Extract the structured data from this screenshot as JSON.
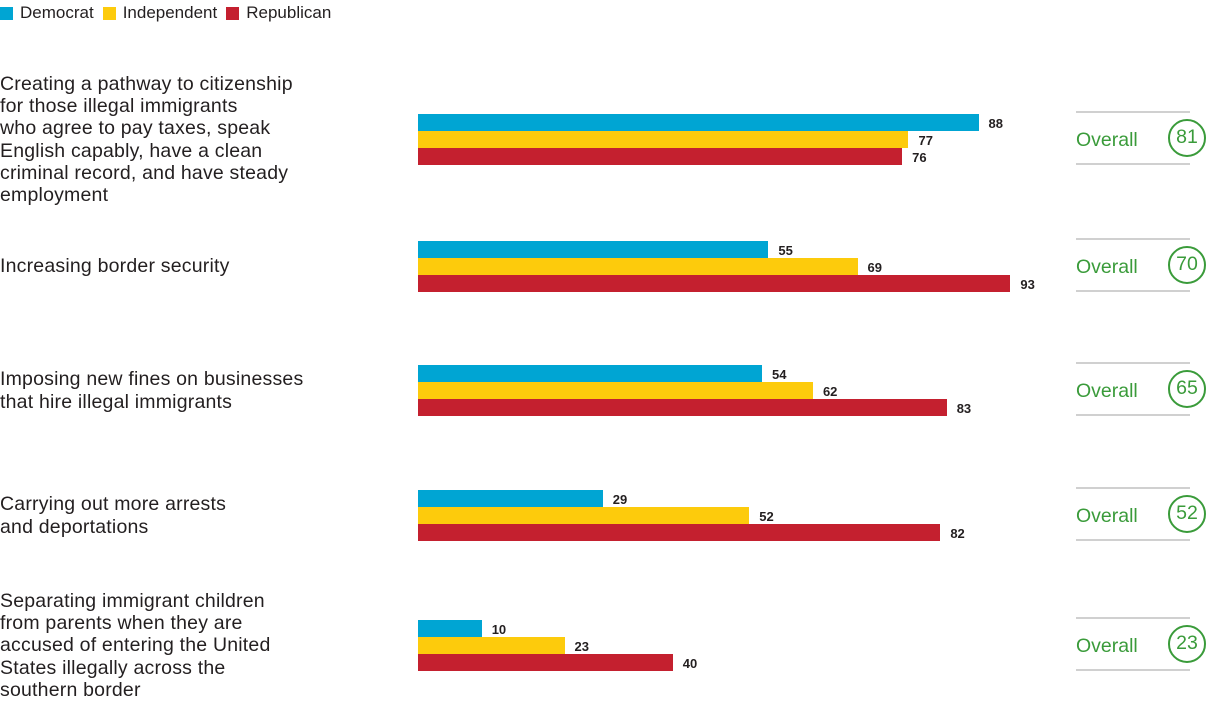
{
  "legend": [
    {
      "name": "Democrat",
      "color": "#00a5d3"
    },
    {
      "name": "Independent",
      "color": "#fdcb0c"
    },
    {
      "name": "Republican",
      "color": "#c4202f"
    }
  ],
  "overall_label": "Overall",
  "chart_data": {
    "type": "bar",
    "orientation": "horizontal",
    "categories": [
      "Creating a pathway to citizenship\nfor those illegal immigrants\nwho agree to pay taxes, speak\nEnglish capably, have a clean\ncriminal record, and have steady\nemployment",
      "Increasing border security",
      "Imposing new fines on businesses\nthat hire illegal immigrants",
      "Carrying out more arrests\nand deportations",
      "Separating immigrant children\nfrom parents when they are\naccused of entering the United\nStates illegally across the\nsouthern border"
    ],
    "series": [
      {
        "name": "Democrat",
        "color": "#00a5d3",
        "values": [
          88,
          55,
          54,
          29,
          10
        ]
      },
      {
        "name": "Independent",
        "color": "#fdcb0c",
        "values": [
          77,
          69,
          62,
          52,
          23
        ]
      },
      {
        "name": "Republican",
        "color": "#c4202f",
        "values": [
          76,
          93,
          83,
          82,
          40
        ]
      }
    ],
    "overall": [
      81,
      70,
      65,
      52,
      23
    ],
    "xlim": [
      0,
      100
    ],
    "legend_position": "top-left"
  }
}
